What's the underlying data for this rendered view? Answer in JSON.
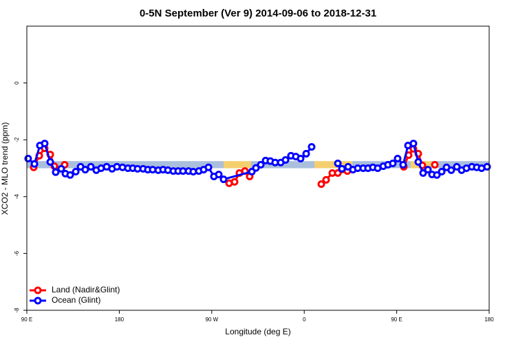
{
  "chart_data": {
    "type": "line",
    "title": "0-5N September (Ver 9)   2014-09-06 to 2018-12-31",
    "x_label": "Longitude (deg E)",
    "y_label": "XCO2 - MLO trend (ppm)",
    "xlim": [
      90,
      540
    ],
    "xticks": [
      {
        "value": 90,
        "label": "90 E"
      },
      {
        "value": 180,
        "label": "180"
      },
      {
        "value": 270,
        "label": "90 W"
      },
      {
        "value": 360,
        "label": "0"
      },
      {
        "value": 450,
        "label": "90 E"
      },
      {
        "value": 540,
        "label": "180"
      }
    ],
    "ylim": [
      -8,
      2
    ],
    "yticks": [
      -8,
      -6,
      -4,
      -2,
      0
    ],
    "legend": "bottom-left",
    "band": {
      "ylim": [
        -3.0,
        -2.75
      ],
      "segments": [
        {
          "x": [
            90,
            281.5
          ],
          "color": "#a9bfdc"
        },
        {
          "x": [
            281.5,
            308.3
          ],
          "color": "#f5cf6e"
        },
        {
          "x": [
            308.3,
            370
          ],
          "color": "#a9bfdc"
        },
        {
          "x": [
            370,
            406.7
          ],
          "color": "#f5cf6e"
        },
        {
          "x": [
            406.7,
            463.6
          ],
          "color": "#a9bfdc"
        },
        {
          "x": [
            463.6,
            483.7
          ],
          "color": "#f5cf6e"
        },
        {
          "x": [
            483.7,
            540
          ],
          "color": "#a9bfdc"
        }
      ]
    },
    "series": [
      {
        "name": "Land (Nadir&Glint)",
        "color": "#ff0000",
        "x": [
          96.7,
          102.1,
          107.4,
          112.8,
          116.8,
          122,
          126.8,
          300,
          286.9,
          292.2,
          296.9,
          302.3,
          306.9,
          385,
          376.6,
          381.3,
          387.3,
          392.7,
          402.0,
          430,
          456.9,
          461.6,
          466.3,
          471.0,
          475.0,
          480,
          487.1
        ],
        "values": [
          -2.97,
          -2.56,
          -2.3,
          -2.52,
          -2.93,
          null,
          -2.88,
          null,
          -3.53,
          -3.48,
          -3.17,
          -3.1,
          -3.29,
          null,
          -3.56,
          -3.41,
          -3.17,
          -3.17,
          -3.1,
          null,
          -2.95,
          -2.54,
          -2.32,
          -2.49,
          -2.9,
          null,
          -2.88
        ]
      },
      {
        "name": "Ocean (Glint)",
        "color": "#0000ff",
        "x": [
          91.3,
          97.4,
          102.7,
          107.4,
          112.8,
          118.1,
          123.5,
          127.5,
          132.2,
          137.6,
          142.3,
          146.9,
          152.3,
          157.6,
          162.3,
          167.7,
          173.0,
          177.7,
          183.1,
          188.4,
          193.1,
          197.8,
          203.2,
          207.8,
          212.5,
          217.9,
          222.6,
          227.3,
          232.6,
          237.3,
          242.0,
          247.4,
          252.0,
          257.4,
          262.1,
          266.8,
          272.1,
          276.8,
          281.5,
          309.0,
          313.0,
          317.7,
          322.4,
          327.0,
          331.7,
          337.1,
          341.8,
          347.1,
          351.8,
          356.5,
          361.9,
          367.2,
          380,
          392.7,
          396.7,
          402.7,
          407.4,
          412.1,
          417.4,
          422.1,
          426.8,
          431.5,
          436.9,
          441.5,
          446.2,
          450.9,
          456.3,
          461.0,
          466.3,
          471.0,
          475.7,
          480.4,
          484.4,
          489.1,
          493.8,
          498.5,
          503.1,
          508.5,
          513.2,
          517.9,
          523.2,
          527.9,
          532.6,
          538.0
        ],
        "values": [
          -2.66,
          -2.85,
          -2.2,
          -2.13,
          -2.78,
          -3.14,
          -3.02,
          -3.19,
          -3.24,
          -3.12,
          -2.95,
          -3.05,
          -2.95,
          -3.07,
          -3.0,
          -2.95,
          -3.02,
          -2.95,
          -2.97,
          -3.0,
          -3.0,
          -3.02,
          -3.02,
          -3.05,
          -3.05,
          -3.07,
          -3.05,
          -3.07,
          -3.1,
          -3.1,
          -3.1,
          -3.1,
          -3.12,
          -3.1,
          -3.05,
          -2.97,
          -3.29,
          -3.22,
          -3.39,
          -3.12,
          -2.99,
          -2.88,
          -2.73,
          -2.75,
          -2.8,
          -2.8,
          -2.71,
          -2.56,
          -2.59,
          -2.66,
          -2.49,
          -2.25,
          null,
          -2.83,
          -3.02,
          -2.95,
          -3.05,
          -3.0,
          -3.0,
          -3.0,
          -2.97,
          -3.0,
          -2.93,
          -2.88,
          -2.83,
          -2.66,
          -2.88,
          -2.2,
          -2.13,
          -2.78,
          -3.17,
          -3.05,
          -3.22,
          -3.24,
          -3.12,
          -2.97,
          -3.07,
          -2.95,
          -3.07,
          -3.0,
          -2.95,
          -2.97,
          -3.0,
          -2.95
        ]
      }
    ]
  }
}
